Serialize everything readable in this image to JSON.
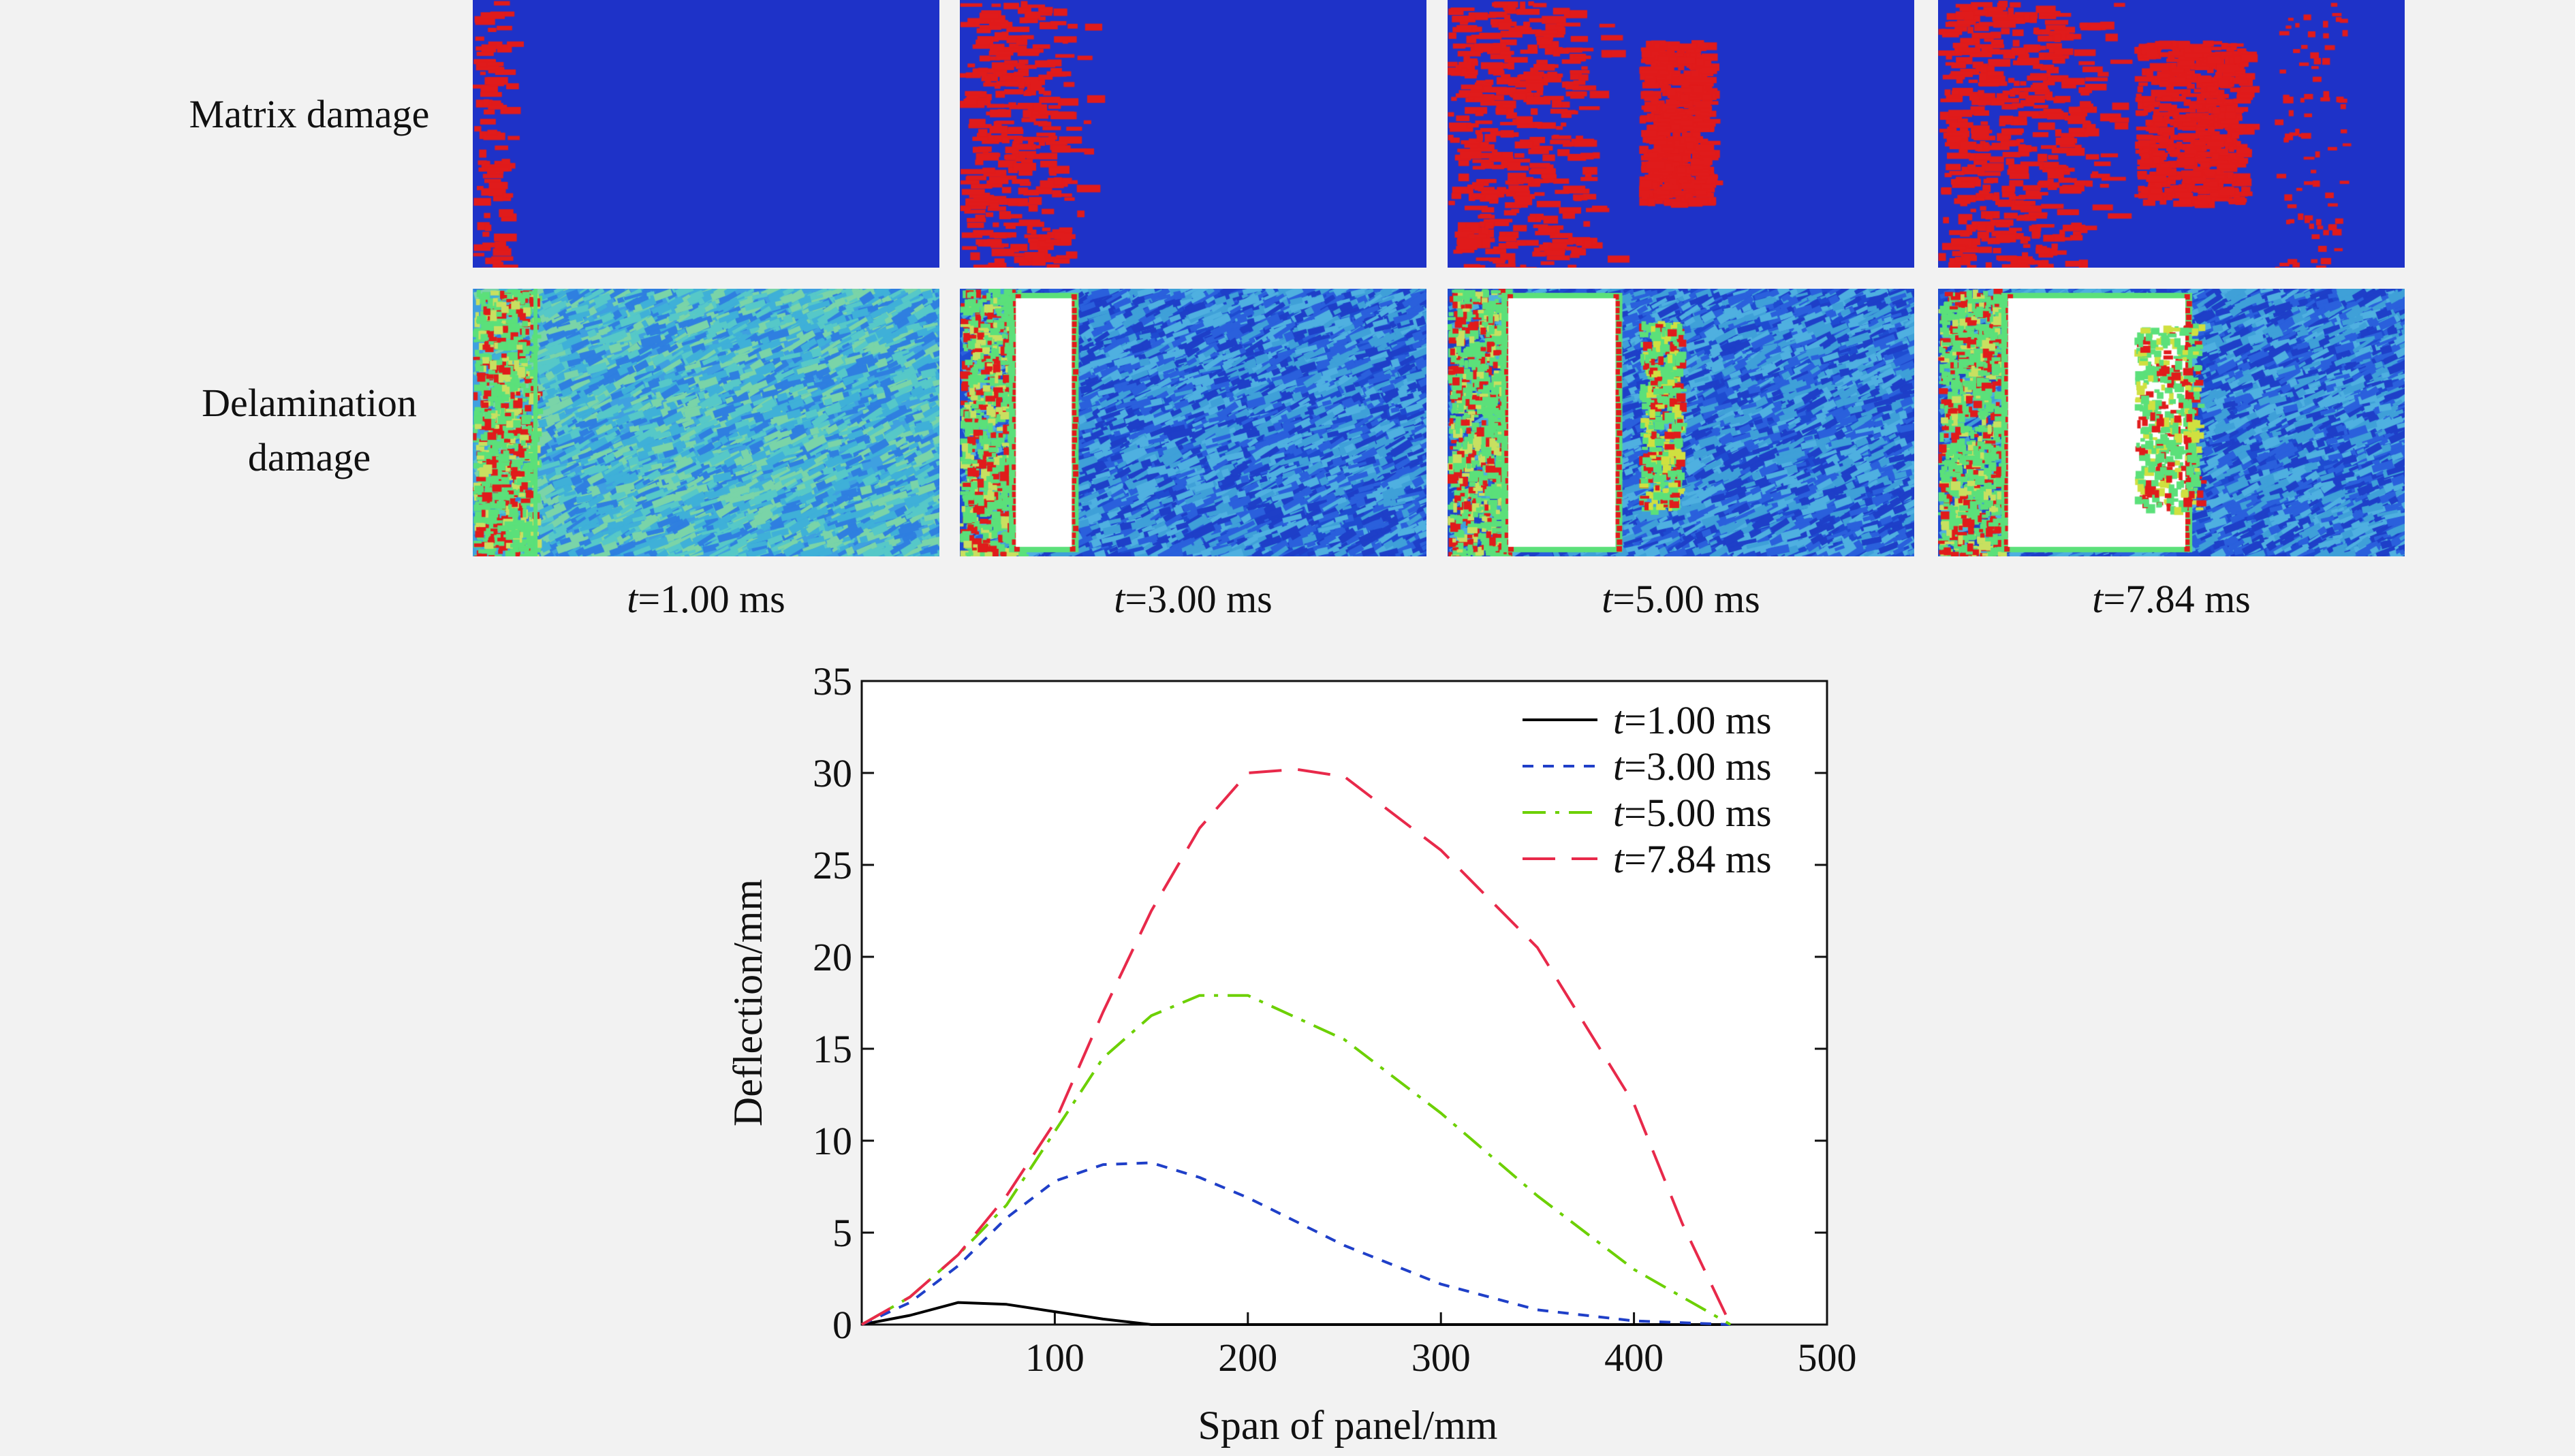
{
  "figure": {
    "row_labels": [
      "Matrix damage",
      "Delamination damage"
    ],
    "panels": [
      {
        "time": "1.00 ms",
        "matrix_spread": 0.08,
        "delam_hole": [
          0,
          0
        ],
        "matrix_patch2": null
      },
      {
        "time": "3.00 ms",
        "matrix_spread": 0.28,
        "delam_hole": [
          0.12,
          0.24
        ],
        "matrix_patch2": null
      },
      {
        "time": "5.00 ms",
        "matrix_spread": 0.35,
        "delam_hole": [
          0.13,
          0.36
        ],
        "matrix_patch2": [
          0.41,
          0.55
        ]
      },
      {
        "time": "7.84 ms",
        "matrix_spread": 0.4,
        "delam_hole": [
          0.15,
          0.53
        ],
        "matrix_patch2": [
          0.42,
          0.65
        ]
      }
    ],
    "colors": {
      "blue": "#1e32c8",
      "red": "#e01b1b",
      "cyan": "#3fb0d8",
      "green": "#5be07a",
      "white": "#ffffff"
    }
  },
  "chart_data": {
    "type": "line",
    "xlabel": "Span of panel/mm",
    "ylabel": "Deflection/mm",
    "xlim": [
      0,
      500
    ],
    "ylim": [
      0,
      35
    ],
    "x_ticks": [
      "100",
      "200",
      "300",
      "400",
      "500"
    ],
    "y_ticks": [
      "0",
      "5",
      "10",
      "15",
      "20",
      "25",
      "30",
      "35"
    ],
    "legend_position": "top-right",
    "series": [
      {
        "name": "=1.00 ms",
        "name_prefix": "t",
        "color": "#000000",
        "dash": "solid",
        "x": [
          0,
          25,
          50,
          75,
          100,
          125,
          150,
          200,
          450
        ],
        "y": [
          0,
          0.5,
          1.2,
          1.1,
          0.7,
          0.3,
          0,
          0,
          0
        ]
      },
      {
        "name": "=3.00 ms",
        "name_prefix": "t",
        "color": "#1f3fc8",
        "dash": "short",
        "x": [
          0,
          25,
          50,
          75,
          100,
          125,
          150,
          175,
          200,
          250,
          300,
          350,
          400,
          450
        ],
        "y": [
          0,
          1.2,
          3.2,
          5.8,
          7.8,
          8.7,
          8.8,
          8.0,
          6.9,
          4.3,
          2.2,
          0.8,
          0.2,
          0
        ]
      },
      {
        "name": "=5.00 ms",
        "name_prefix": "t",
        "color": "#6cd000",
        "dash": "dashdot",
        "x": [
          0,
          25,
          50,
          75,
          100,
          125,
          150,
          175,
          200,
          250,
          300,
          350,
          400,
          450
        ],
        "y": [
          0,
          1.5,
          3.8,
          6.5,
          10.5,
          14.5,
          16.8,
          17.9,
          17.9,
          15.5,
          11.5,
          7.0,
          3.0,
          0
        ]
      },
      {
        "name": "=7.84 ms",
        "name_prefix": "t",
        "color": "#e8294a",
        "dash": "long",
        "x": [
          0,
          25,
          50,
          75,
          100,
          125,
          150,
          175,
          200,
          225,
          250,
          300,
          350,
          400,
          425,
          450
        ],
        "y": [
          0,
          1.5,
          3.8,
          7.0,
          11.0,
          17.0,
          22.5,
          27.0,
          30.0,
          30.2,
          29.8,
          25.8,
          20.5,
          12.0,
          5.5,
          0
        ]
      }
    ]
  }
}
